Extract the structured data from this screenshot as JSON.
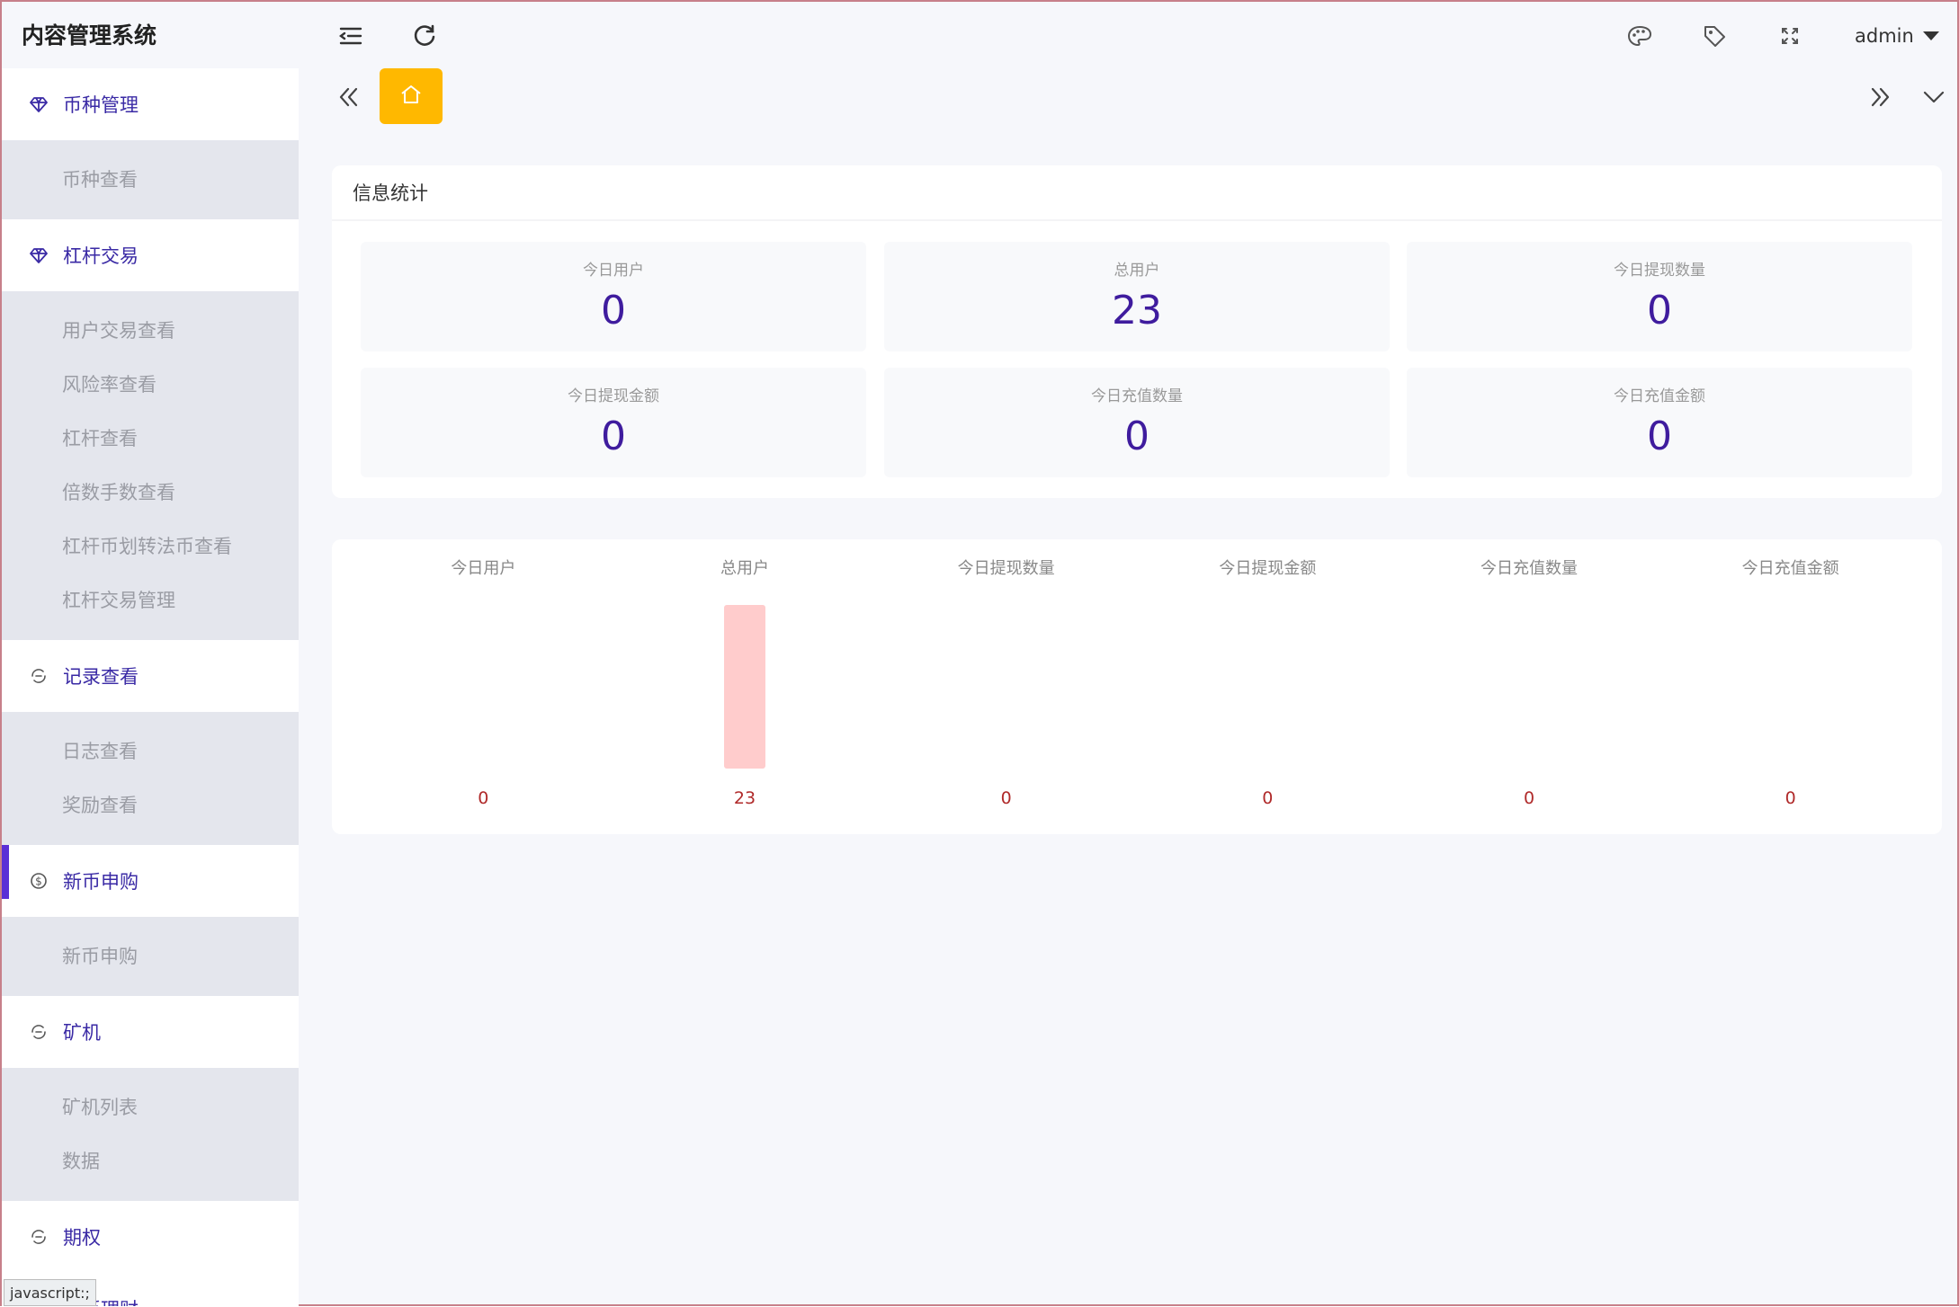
{
  "app": {
    "title": "内容管理系统",
    "user": "admin"
  },
  "header_icons": [
    "menu-fold-icon",
    "refresh-icon",
    "theme-palette-icon",
    "tag-icon",
    "fullscreen-icon"
  ],
  "sidebar": {
    "groups": [
      {
        "label": "币种管理",
        "icon": "diamond-icon",
        "items": [
          "币种查看"
        ]
      },
      {
        "label": "杠杆交易",
        "icon": "diamond-icon",
        "items": [
          "用户交易查看",
          "风险率查看",
          "杠杆查看",
          "倍数手数查看",
          "杠杆币划转法币查看",
          "杠杆交易管理"
        ]
      },
      {
        "label": "记录查看",
        "icon": "circle-arrows-icon",
        "items": [
          "日志查看",
          "奖励查看"
        ]
      },
      {
        "label": "新币申购",
        "icon": "dollar-circle-icon",
        "active": true,
        "items": [
          "新币申购"
        ]
      },
      {
        "label": "矿机",
        "icon": "circle-arrows-icon",
        "items": [
          "矿机列表",
          "数据"
        ]
      },
      {
        "label": "期权",
        "icon": "circle-arrows-icon",
        "items": []
      },
      {
        "label": "双币理财",
        "icon": "circle-arrows-icon",
        "items": []
      }
    ]
  },
  "tabs": {
    "home_icon": "home-icon"
  },
  "stats": {
    "title": "信息统计",
    "items": [
      {
        "label": "今日用户",
        "value": "0"
      },
      {
        "label": "总用户",
        "value": "23"
      },
      {
        "label": "今日提现数量",
        "value": "0"
      },
      {
        "label": "今日提现金额",
        "value": "0"
      },
      {
        "label": "今日充值数量",
        "value": "0"
      },
      {
        "label": "今日充值金额",
        "value": "0"
      }
    ]
  },
  "chart_data": {
    "type": "bar",
    "categories": [
      "今日用户",
      "总用户",
      "今日提现数量",
      "今日提现金额",
      "今日充值数量",
      "今日充值金额"
    ],
    "values": [
      0,
      23,
      0,
      0,
      0,
      0
    ],
    "bar_color": "#ffcccc",
    "label_color": "#b02a2a",
    "title": "",
    "xlabel": "",
    "ylabel": ""
  },
  "status_bar": {
    "text": "javascript:;"
  },
  "colors": {
    "accent": "#5a2fd6",
    "home_tab": "#ffb800",
    "stat_value": "#3f1c9e"
  }
}
